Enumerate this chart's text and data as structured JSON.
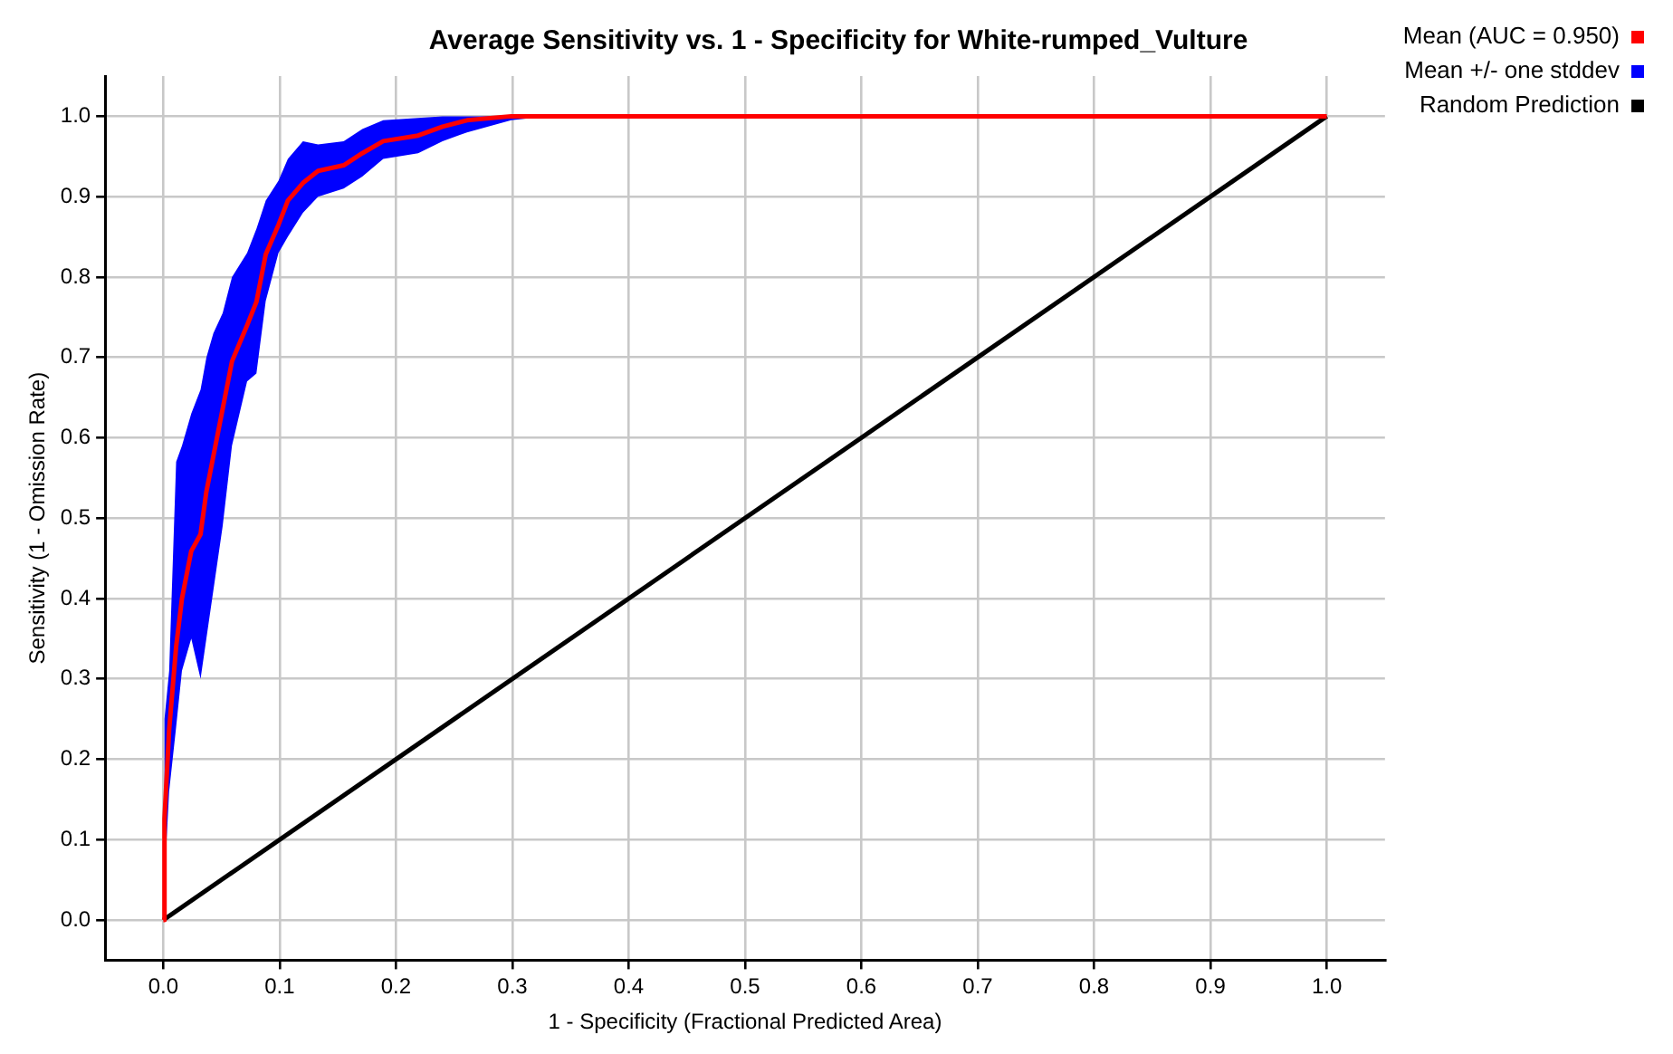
{
  "chart_data": {
    "type": "line",
    "title": "Average Sensitivity vs. 1 - Specificity for White-rumped_Vulture",
    "xlabel": "1 - Specificity (Fractional Predicted Area)",
    "ylabel": "Sensitivity (1 - Omission Rate)",
    "xlim": [
      -0.05,
      1.05
    ],
    "ylim": [
      -0.05,
      1.05
    ],
    "xticks": [
      {
        "value": 0,
        "label": "0.0"
      },
      0.1,
      0.2,
      0.3,
      0.4,
      0.5,
      0.6,
      0.7,
      0.8,
      0.9,
      {
        "value": 1,
        "label": "1.0"
      }
    ],
    "yticks": [
      {
        "value": 0,
        "label": "0.0"
      },
      0.1,
      0.2,
      0.3,
      0.4,
      0.5,
      0.6,
      0.7,
      0.8,
      0.9,
      {
        "value": 1,
        "label": "1.0"
      }
    ],
    "grid": true,
    "legend": "right",
    "marker": "none",
    "line_style": "solid",
    "series": [
      {
        "name": "Mean (AUC = 0.950)",
        "color": "#ff0000",
        "type": "line",
        "x": [
          0,
          0.001,
          0.005,
          0.011,
          0.016,
          0.024,
          0.032,
          0.037,
          0.043,
          0.051,
          0.059,
          0.072,
          0.08,
          0.088,
          0.099,
          0.107,
          0.12,
          0.133,
          0.155,
          0.171,
          0.189,
          0.219,
          0.24,
          0.261,
          0.299,
          0.33,
          1
        ],
        "values": [
          0,
          0.126,
          0.237,
          0.34,
          0.4,
          0.459,
          0.48,
          0.533,
          0.577,
          0.636,
          0.695,
          0.74,
          0.769,
          0.828,
          0.865,
          0.895,
          0.917,
          0.932,
          0.939,
          0.954,
          0.969,
          0.976,
          0.987,
          0.995,
          1,
          1,
          1
        ]
      },
      {
        "name": "Mean +/- one stddev",
        "color": "#0000ff",
        "type": "line",
        "x": [
          0,
          0.001,
          0.005,
          0.011,
          0.016,
          0.024,
          0.032,
          0.037,
          0.043,
          0.051,
          0.059,
          0.072,
          0.08,
          0.088,
          0.099,
          0.107,
          0.12,
          0.133,
          0.155,
          0.171,
          0.189,
          0.219,
          0.24,
          0.261,
          0.299,
          0.33
        ],
        "values": [
          null,
          null,
          null,
          null,
          null,
          null,
          null,
          null,
          null,
          null,
          null,
          null,
          null,
          null,
          null,
          null,
          null,
          null,
          null,
          null,
          null,
          null,
          null,
          null,
          null,
          null
        ],
        "upper": [
          0,
          0.25,
          0.31,
          0.57,
          0.59,
          0.63,
          0.66,
          0.7,
          0.73,
          0.755,
          0.8,
          0.83,
          0.86,
          0.895,
          0.92,
          0.947,
          0.969,
          0.965,
          0.969,
          0.984,
          0.995,
          0.998,
          1,
          1,
          1,
          1
        ],
        "lower": [
          0,
          0.05,
          0.16,
          0.24,
          0.31,
          0.35,
          0.3,
          0.35,
          0.41,
          0.49,
          0.59,
          0.67,
          0.68,
          0.77,
          0.83,
          0.85,
          0.88,
          0.9,
          0.91,
          0.925,
          0.947,
          0.954,
          0.969,
          0.98,
          0.995,
          1
        ]
      },
      {
        "name": "Random Prediction",
        "color": "#000000",
        "type": "line",
        "x": [
          0,
          1
        ],
        "values": [
          0,
          1
        ]
      }
    ]
  }
}
